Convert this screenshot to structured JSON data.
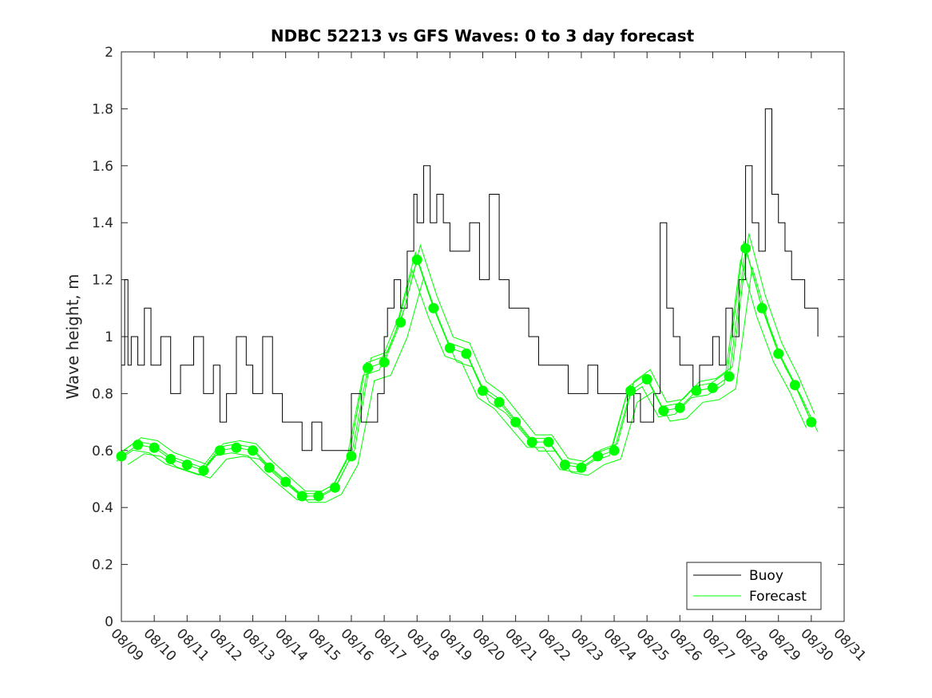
{
  "chart_data": {
    "type": "line",
    "title": "NDBC 52213 vs GFS Waves: 0 to 3 day forecast",
    "xlabel": "",
    "ylabel": "Wave height, m",
    "ylim": [
      0,
      2
    ],
    "yticks": [
      0,
      0.2,
      0.4,
      0.6,
      0.8,
      1,
      1.2,
      1.4,
      1.6,
      1.8,
      2
    ],
    "ytick_labels": [
      "0",
      "0.2",
      "0.4",
      "0.6",
      "0.8",
      "1",
      "1.2",
      "1.4",
      "1.6",
      "1.8",
      "2"
    ],
    "xlim_days": [
      0,
      22
    ],
    "xtick_labels": [
      "08/09",
      "08/10",
      "08/11",
      "08/12",
      "08/13",
      "08/14",
      "08/15",
      "08/16",
      "08/17",
      "08/18",
      "08/19",
      "08/20",
      "08/21",
      "08/22",
      "08/23",
      "08/24",
      "08/25",
      "08/26",
      "08/27",
      "08/28",
      "08/29",
      "08/30",
      "08/31"
    ],
    "legend": {
      "location": "bottom-right",
      "entries": [
        "Buoy",
        "Forecast"
      ]
    },
    "colors": {
      "buoy": "#000000",
      "forecast": "#00ff00",
      "axis": "#262626"
    },
    "series": [
      {
        "name": "Buoy",
        "x_days": [
          0,
          0.1,
          0.2,
          0.3,
          0.5,
          0.7,
          0.9,
          1.0,
          1.2,
          1.5,
          1.8,
          2.0,
          2.2,
          2.5,
          2.8,
          3.0,
          3.2,
          3.5,
          3.8,
          4.0,
          4.3,
          4.6,
          4.9,
          5.2,
          5.5,
          5.8,
          6.1,
          6.4,
          6.7,
          7.0,
          7.3,
          7.6,
          7.8,
          8.0,
          8.1,
          8.3,
          8.5,
          8.7,
          8.9,
          9.0,
          9.2,
          9.4,
          9.6,
          9.8,
          10.0,
          10.3,
          10.6,
          10.9,
          11.2,
          11.5,
          11.8,
          12.1,
          12.4,
          12.7,
          13.0,
          13.3,
          13.6,
          13.9,
          14.2,
          14.5,
          14.8,
          15.0,
          15.2,
          15.4,
          15.6,
          15.8,
          16.0,
          16.2,
          16.4,
          16.6,
          16.8,
          17.0,
          17.2,
          17.4,
          17.6,
          17.8,
          18.0,
          18.2,
          18.4,
          18.6,
          18.8,
          19.0,
          19.2,
          19.4,
          19.6,
          19.8,
          20.0,
          20.2,
          20.4,
          20.6,
          20.8,
          21.0,
          21.1,
          21.2
        ],
        "y": [
          0.9,
          1.2,
          0.9,
          1.0,
          0.9,
          1.1,
          0.9,
          0.9,
          1.0,
          0.8,
          0.9,
          0.9,
          1.0,
          0.8,
          0.9,
          0.7,
          0.8,
          1.0,
          0.9,
          0.8,
          1.0,
          0.8,
          0.7,
          0.7,
          0.6,
          0.7,
          0.6,
          0.6,
          0.6,
          0.8,
          0.7,
          0.7,
          0.8,
          1.0,
          1.1,
          1.2,
          1.1,
          1.3,
          1.5,
          1.4,
          1.6,
          1.4,
          1.5,
          1.4,
          1.3,
          1.3,
          1.4,
          1.2,
          1.5,
          1.2,
          1.1,
          1.1,
          1.0,
          0.9,
          0.9,
          0.9,
          0.8,
          0.8,
          0.9,
          0.8,
          0.8,
          0.8,
          0.8,
          0.7,
          0.8,
          0.7,
          0.7,
          0.8,
          1.4,
          1.1,
          1.0,
          0.9,
          0.9,
          0.8,
          0.9,
          0.9,
          1.0,
          0.9,
          1.1,
          1.0,
          1.2,
          1.6,
          1.4,
          1.3,
          1.8,
          1.5,
          1.4,
          1.3,
          1.2,
          1.2,
          1.1,
          1.1,
          1.1,
          1.0
        ]
      },
      {
        "name": "Forecast",
        "x_days": [
          0,
          0.5,
          1.0,
          1.5,
          2.0,
          2.5,
          3.0,
          3.5,
          4.0,
          4.5,
          5.0,
          5.5,
          6.0,
          6.5,
          7.0,
          7.5,
          8.0,
          8.5,
          9.0,
          9.5,
          10.0,
          10.5,
          11.0,
          11.5,
          12.0,
          12.5,
          13.0,
          13.5,
          14.0,
          14.5,
          15.0,
          15.5,
          16.0,
          16.5,
          17.0,
          17.5,
          18.0,
          18.5,
          19.0,
          19.5,
          20.0,
          20.5,
          21.0
        ],
        "y": [
          0.58,
          0.62,
          0.61,
          0.57,
          0.55,
          0.53,
          0.6,
          0.61,
          0.6,
          0.54,
          0.49,
          0.44,
          0.44,
          0.47,
          0.58,
          0.89,
          0.91,
          1.05,
          1.27,
          1.1,
          0.96,
          0.94,
          0.81,
          0.77,
          0.7,
          0.63,
          0.63,
          0.55,
          0.54,
          0.58,
          0.6,
          0.81,
          0.85,
          0.74,
          0.75,
          0.81,
          0.82,
          0.86,
          1.31,
          1.1,
          0.94,
          0.83,
          0.7
        ]
      }
    ]
  }
}
